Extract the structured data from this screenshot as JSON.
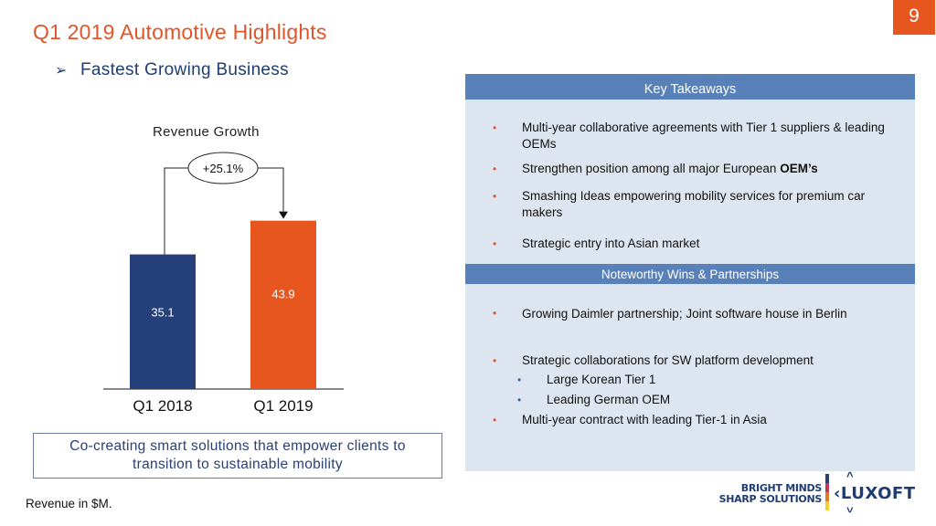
{
  "header": {
    "title": "Q1 2019 Automotive Highlights",
    "page_number": "9",
    "subtitle_icon": "arrow-bullet-icon",
    "subtitle": "Fastest Growing Business"
  },
  "chart_data": {
    "type": "bar",
    "title": "Revenue Growth",
    "categories": [
      "Q1 2018",
      "Q1 2019"
    ],
    "values": [
      35.1,
      43.9
    ],
    "value_labels": [
      "35.1",
      "43.9"
    ],
    "colors": [
      "#243f7a",
      "#e8561f"
    ],
    "unit": "$M",
    "growth_annotation": "+25.1%",
    "xlabel": "",
    "ylabel": "",
    "ylim": [
      0,
      50
    ],
    "grid": false
  },
  "callout": {
    "line1": "Co-creating smart solutions that empower clients to",
    "line2": "transition to sustainable mobility"
  },
  "footnote": "Revenue in $M.",
  "key_takeaways": {
    "header": "Key Takeaways",
    "items": [
      {
        "text": "Multi-year collaborative agreements with Tier 1 suppliers & leading OEMs"
      },
      {
        "text": "Strengthen position among all major European ",
        "bold": "OEM’s"
      },
      {
        "text": "Smashing Ideas empowering mobility services for premium car makers"
      },
      {
        "text": "Strategic entry into Asian market"
      }
    ]
  },
  "wins": {
    "header": "Noteworthy Wins & Partnerships",
    "items": [
      {
        "text": "Growing Daimler partnership; Joint software house in Berlin"
      },
      {
        "text": "Strategic collaborations for SW platform development"
      },
      {
        "text": "Large Korean Tier 1",
        "level": 2
      },
      {
        "text": "Leading German OEM",
        "level": 2
      },
      {
        "text": "Multi-year contract with leading Tier-1 in Asia"
      }
    ]
  },
  "logo": {
    "tagline_line1": "BRIGHT MINDS",
    "tagline_line2": "SHARP SOLUTIONS",
    "brand": "‹LUXOFT",
    "colors": {
      "navy": "#1f3d73"
    }
  },
  "bullet_char": "•"
}
